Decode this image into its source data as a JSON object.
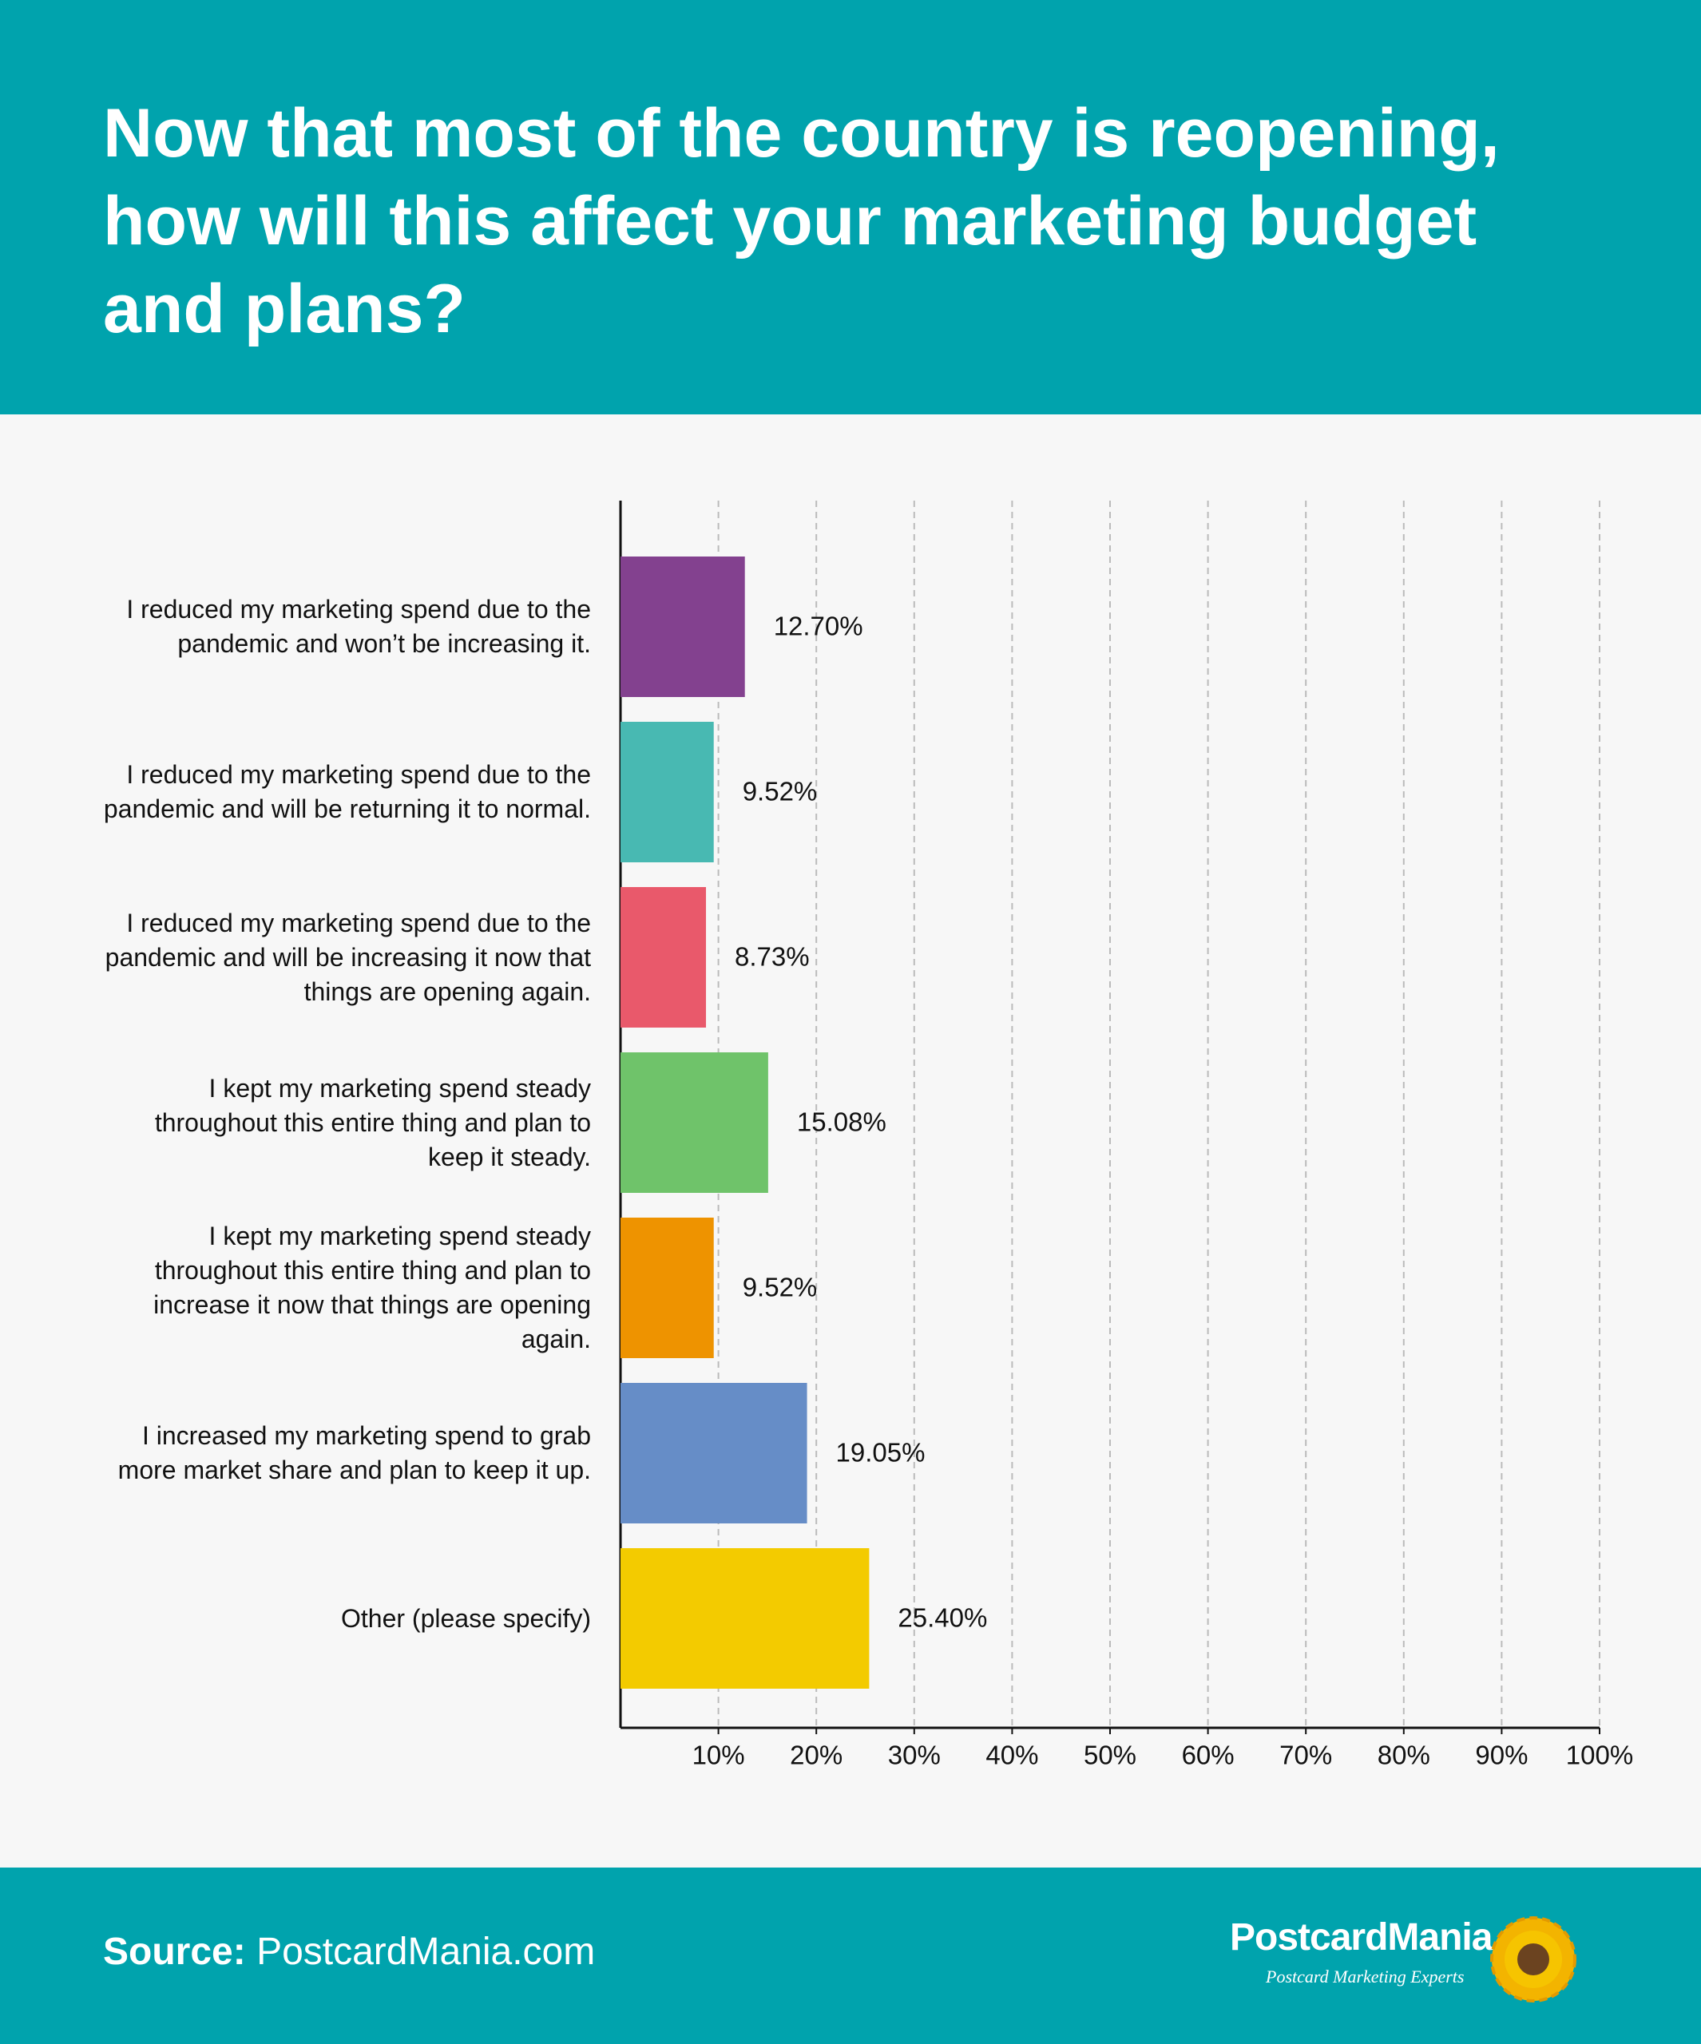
{
  "chart_data": {
    "type": "hbar",
    "title": "Now that most of the country is reopening, how will this affect your marketing budget and plans?",
    "categories": [
      "I reduced my marketing spend due to the pandemic and won’t be increasing it.",
      "I reduced my marketing spend due to the pandemic and will be returning it to normal.",
      "I reduced my marketing spend due to the pandemic and will be increasing it now that things are opening again.",
      "I kept my marketing spend steady throughout this entire thing and plan to keep it steady.",
      "I kept my marketing spend steady throughout this entire thing and plan to increase it now that things are opening again.",
      "I increased my marketing spend to grab more market share and plan to keep it up.",
      "Other (please specify)"
    ],
    "values": [
      12.7,
      9.52,
      8.73,
      15.08,
      9.52,
      19.05,
      25.4
    ],
    "value_labels": [
      "12.70%",
      "9.52%",
      "8.73%",
      "15.08%",
      "9.52%",
      "19.05%",
      "25.40%"
    ],
    "colors": [
      "#83418f",
      "#48b9b2",
      "#e9596b",
      "#6fc36a",
      "#ee9300",
      "#668dc7",
      "#f3cb00"
    ],
    "xlim": [
      0,
      100
    ],
    "xticks": [
      {
        "value": 10,
        "label": "10%"
      },
      {
        "value": 20,
        "label": "20%"
      },
      {
        "value": 30,
        "label": "30%"
      },
      {
        "value": 40,
        "label": "40%"
      },
      {
        "value": 50,
        "label": "50%"
      },
      {
        "value": 60,
        "label": "60%"
      },
      {
        "value": 70,
        "label": "70%"
      },
      {
        "value": 80,
        "label": "80%"
      },
      {
        "value": 90,
        "label": "90%"
      },
      {
        "value": 100,
        "label": "100%"
      }
    ],
    "grid": true
  },
  "footer": {
    "source_label": "Source:",
    "source": "PostcardMania.com",
    "logo": "PostcardMania",
    "tagline": "Postcard Marketing Experts"
  }
}
